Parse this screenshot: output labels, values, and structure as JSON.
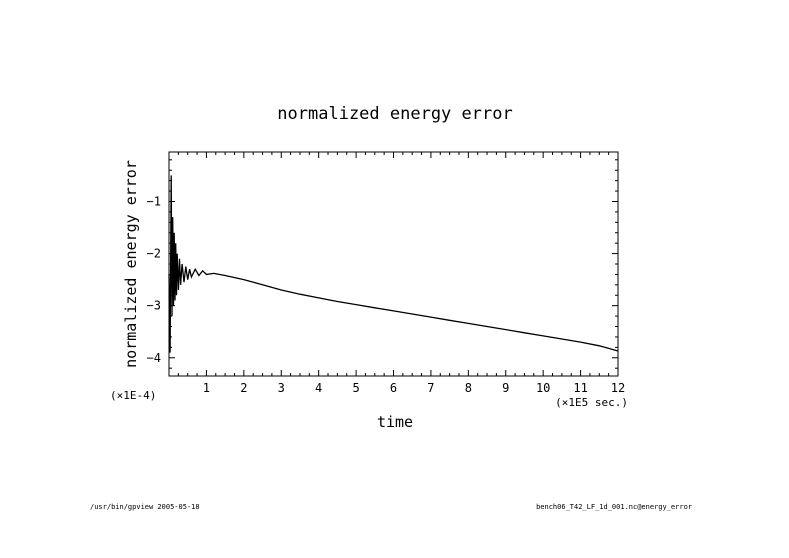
{
  "chart_data": {
    "type": "line",
    "title": "normalized energy error",
    "xlabel": "time",
    "ylabel": "normalized energy error",
    "x_unit_note": "(×1E5 sec.)",
    "y_unit_note": "(×1E-4)",
    "xlim": [
      0,
      12
    ],
    "ylim": [
      -4.35,
      -0.05
    ],
    "xticks": [
      1,
      2,
      3,
      4,
      5,
      6,
      7,
      8,
      9,
      10,
      11,
      12
    ],
    "yticks": [
      -1,
      -2,
      -3,
      -4
    ],
    "grid": false,
    "series": [
      {
        "color": "#000000",
        "x": [
          0.0,
          0.03,
          0.06,
          0.08,
          0.1,
          0.12,
          0.14,
          0.16,
          0.18,
          0.2,
          0.22,
          0.25,
          0.28,
          0.31,
          0.35,
          0.4,
          0.45,
          0.5,
          0.55,
          0.6,
          0.7,
          0.8,
          0.9,
          1.0,
          1.2,
          1.5,
          2.0,
          2.5,
          3.0,
          3.5,
          4.0,
          4.5,
          5.0,
          5.5,
          6.0,
          6.5,
          7.0,
          7.5,
          8.0,
          8.5,
          9.0,
          9.5,
          10.0,
          10.5,
          11.0,
          11.5,
          12.0
        ],
        "values": [
          -2.4,
          -3.9,
          -0.5,
          -3.2,
          -1.3,
          -3.0,
          -1.6,
          -2.9,
          -1.8,
          -2.8,
          -2.0,
          -2.7,
          -2.1,
          -2.6,
          -2.2,
          -2.55,
          -2.25,
          -2.5,
          -2.3,
          -2.45,
          -2.3,
          -2.42,
          -2.33,
          -2.4,
          -2.38,
          -2.42,
          -2.5,
          -2.6,
          -2.7,
          -2.78,
          -2.85,
          -2.92,
          -2.98,
          -3.04,
          -3.1,
          -3.16,
          -3.22,
          -3.28,
          -3.34,
          -3.4,
          -3.46,
          -3.52,
          -3.58,
          -3.64,
          -3.7,
          -3.77,
          -3.87
        ]
      }
    ]
  },
  "footer": {
    "left": "/usr/bin/gpview  2005-05-18",
    "right": "bench06_T42_LF_1d_001.nc@energy_error"
  }
}
